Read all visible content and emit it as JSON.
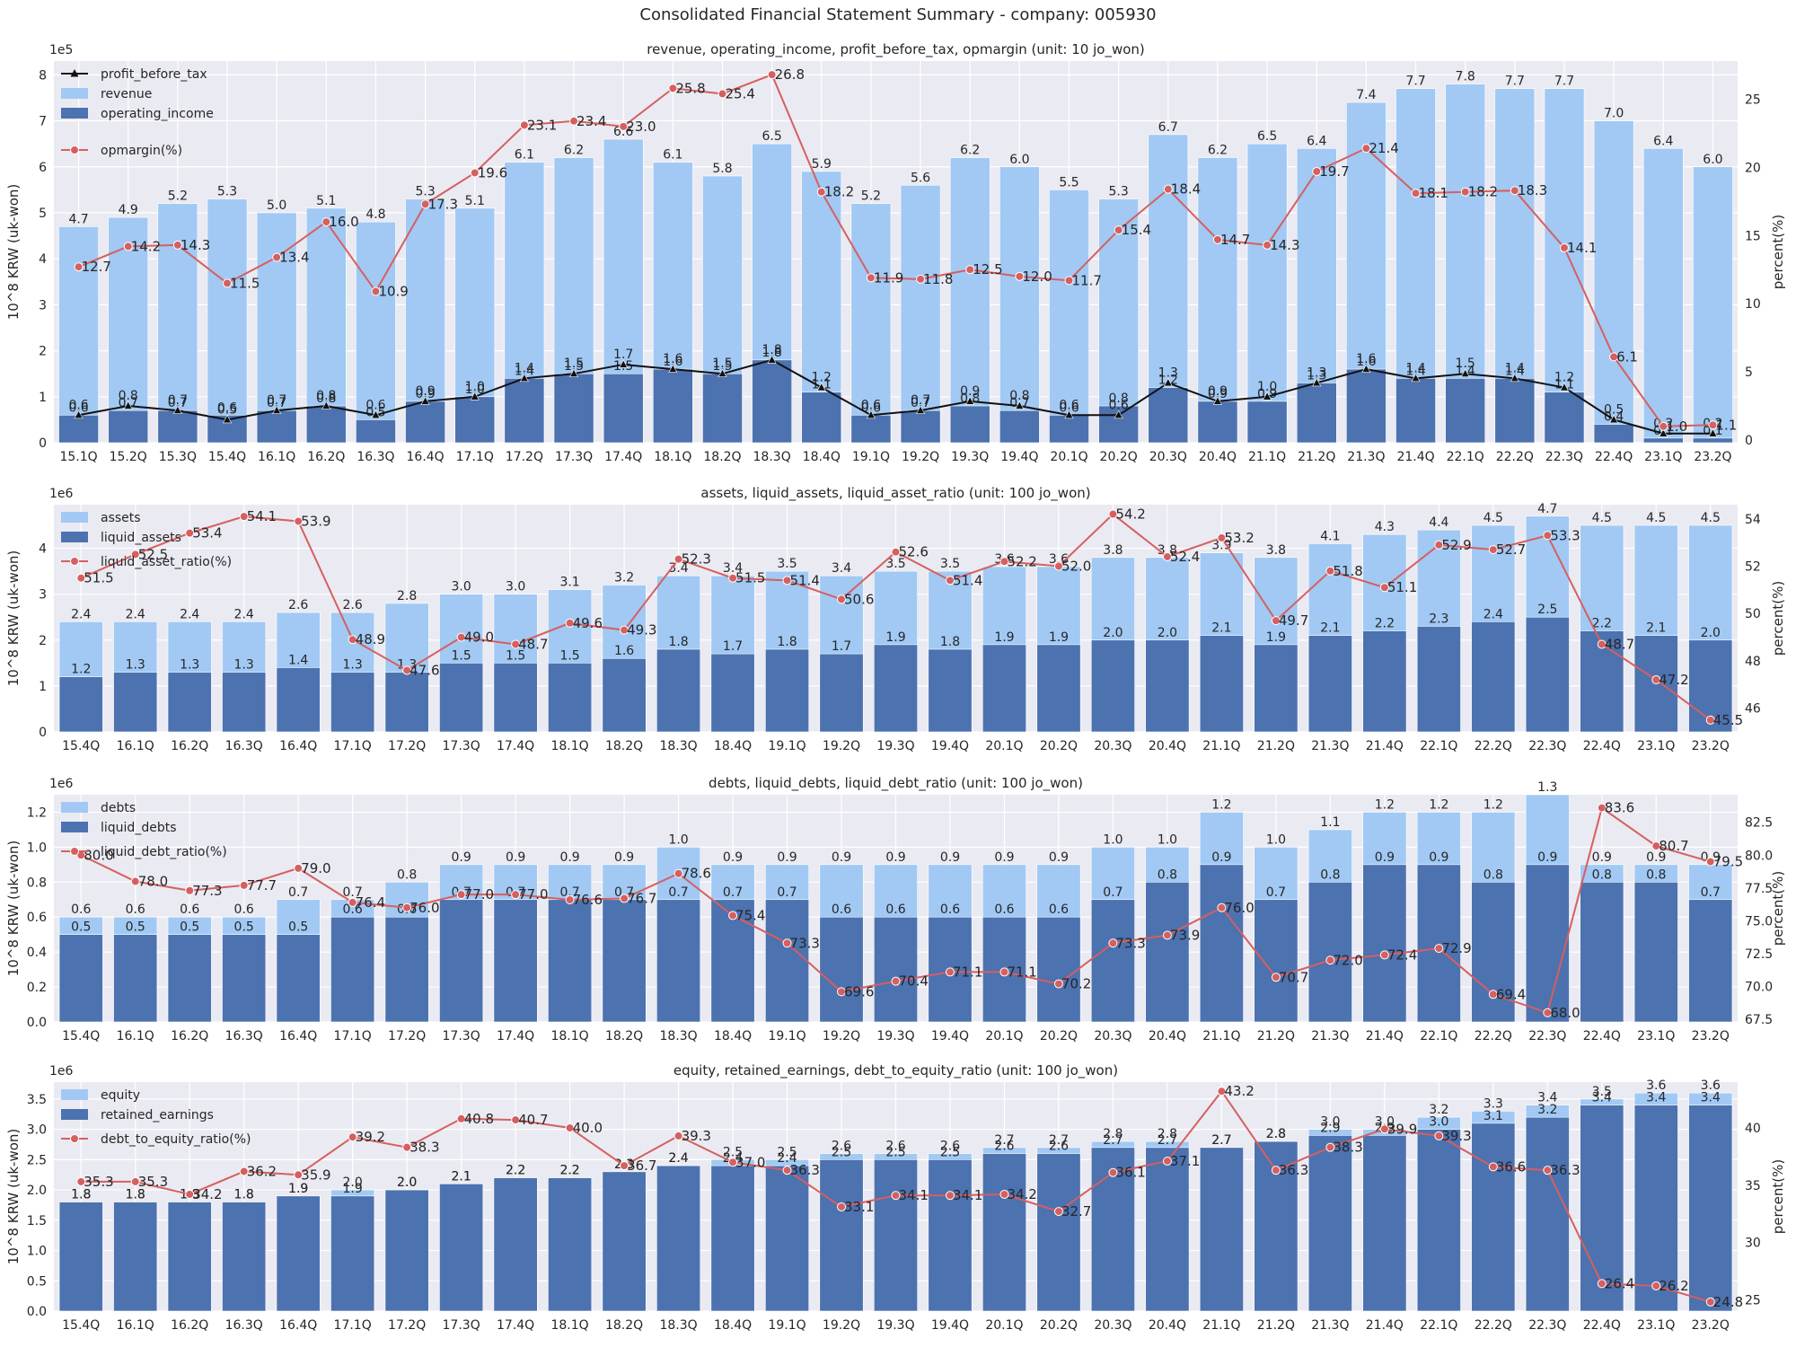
{
  "figure": {
    "title": "Consolidated Financial Statement Summary - company: 005930"
  },
  "colors": {
    "bg": "#eaeaf2",
    "grid": "#ffffff",
    "light_bar": "#a1c9f4",
    "dark_bar": "#4c72b0",
    "line_red": "#d65f5f",
    "line_black": "#111111",
    "text": "#262626"
  },
  "chart_data": [
    {
      "type": "bar",
      "title": "revenue, operating_income, profit_before_tax, opmargin (unit: 10 jo_won)",
      "ylabel": "10^8 KRW (uk-won)",
      "y2label": "percent(%)",
      "yscale_label": "1e5",
      "ylim": [
        0,
        8.3
      ],
      "yticks": [
        "0",
        "1",
        "2",
        "3",
        "4",
        "5",
        "6",
        "7",
        "8"
      ],
      "y2lim": [
        -0.2,
        27.8
      ],
      "y2ticks": [
        "0",
        "5",
        "10",
        "15",
        "20",
        "25"
      ],
      "legend_position": "top-left",
      "categories": [
        "15.1Q",
        "15.2Q",
        "15.3Q",
        "15.4Q",
        "16.1Q",
        "16.2Q",
        "16.3Q",
        "16.4Q",
        "17.1Q",
        "17.2Q",
        "17.3Q",
        "17.4Q",
        "18.1Q",
        "18.2Q",
        "18.3Q",
        "18.4Q",
        "19.1Q",
        "19.2Q",
        "19.3Q",
        "19.4Q",
        "20.1Q",
        "20.2Q",
        "20.3Q",
        "20.4Q",
        "21.1Q",
        "21.2Q",
        "21.3Q",
        "21.4Q",
        "22.1Q",
        "22.2Q",
        "22.3Q",
        "22.4Q",
        "23.1Q",
        "23.2Q"
      ],
      "legend": [
        "profit_before_tax",
        "revenue",
        "operating_income",
        "opmargin(%)"
      ],
      "bars_back": {
        "name": "revenue",
        "values": [
          4.7,
          4.9,
          5.2,
          5.3,
          5.0,
          5.1,
          4.8,
          5.3,
          5.1,
          6.1,
          6.2,
          6.6,
          6.1,
          5.8,
          6.5,
          5.9,
          5.2,
          5.6,
          6.2,
          6.0,
          5.5,
          5.3,
          6.7,
          6.2,
          6.5,
          6.4,
          7.4,
          7.7,
          7.8,
          7.7,
          7.7,
          7.0,
          6.4,
          6.0
        ]
      },
      "bars_front": {
        "name": "operating_income",
        "values": [
          0.6,
          0.7,
          0.7,
          0.6,
          0.7,
          0.8,
          0.5,
          0.9,
          1.0,
          1.4,
          1.5,
          1.5,
          1.6,
          1.5,
          1.8,
          1.1,
          0.6,
          0.7,
          0.8,
          0.7,
          0.6,
          0.8,
          1.2,
          0.9,
          0.9,
          1.3,
          1.6,
          1.4,
          1.4,
          1.4,
          1.1,
          0.4,
          0.1,
          0.1
        ]
      },
      "line_black": {
        "name": "profit_before_tax",
        "values": [
          0.6,
          0.8,
          0.7,
          0.5,
          0.7,
          0.8,
          0.6,
          0.9,
          1.0,
          1.4,
          1.5,
          1.7,
          1.6,
          1.5,
          1.8,
          1.2,
          0.6,
          0.7,
          0.9,
          0.8,
          0.6,
          0.6,
          1.3,
          0.9,
          1.0,
          1.3,
          1.6,
          1.4,
          1.5,
          1.4,
          1.2,
          0.5,
          0.2,
          0.2
        ]
      },
      "line_red": {
        "name": "opmargin(%)",
        "values": [
          12.7,
          14.2,
          14.3,
          11.5,
          13.4,
          16.0,
          10.9,
          17.3,
          19.6,
          23.1,
          23.4,
          23.0,
          25.8,
          25.4,
          26.8,
          18.2,
          11.9,
          11.8,
          12.5,
          12.0,
          11.7,
          15.4,
          18.4,
          14.7,
          14.3,
          19.7,
          21.4,
          18.1,
          18.2,
          18.3,
          14.1,
          6.1,
          1.0,
          1.1
        ]
      }
    },
    {
      "type": "bar",
      "title": "assets, liquid_assets, liquid_asset_ratio (unit: 100 jo_won)",
      "ylabel": "10^8 KRW (uk-won)",
      "y2label": "percent(%)",
      "yscale_label": "1e6",
      "ylim": [
        0,
        4.95
      ],
      "yticks": [
        "0",
        "1",
        "2",
        "3",
        "4"
      ],
      "y2lim": [
        45.0,
        54.6
      ],
      "y2ticks": [
        "46",
        "48",
        "50",
        "52",
        "54"
      ],
      "legend_position": "top-left",
      "categories": [
        "15.4Q",
        "16.1Q",
        "16.2Q",
        "16.3Q",
        "16.4Q",
        "17.1Q",
        "17.2Q",
        "17.3Q",
        "17.4Q",
        "18.1Q",
        "18.2Q",
        "18.3Q",
        "18.4Q",
        "19.1Q",
        "19.2Q",
        "19.3Q",
        "19.4Q",
        "20.1Q",
        "20.2Q",
        "20.3Q",
        "20.4Q",
        "21.1Q",
        "21.2Q",
        "21.3Q",
        "21.4Q",
        "22.1Q",
        "22.2Q",
        "22.3Q",
        "22.4Q",
        "23.1Q",
        "23.2Q"
      ],
      "legend": [
        "assets",
        "liquid_assets",
        "liquid_asset_ratio(%)"
      ],
      "bars_back": {
        "name": "assets",
        "values": [
          2.4,
          2.4,
          2.4,
          2.4,
          2.6,
          2.6,
          2.8,
          3.0,
          3.0,
          3.1,
          3.2,
          3.4,
          3.4,
          3.5,
          3.4,
          3.5,
          3.5,
          3.6,
          3.6,
          3.8,
          3.8,
          3.9,
          3.8,
          4.1,
          4.3,
          4.4,
          4.5,
          4.7,
          4.5,
          4.5,
          4.5
        ]
      },
      "bars_front": {
        "name": "liquid_assets",
        "values": [
          1.2,
          1.3,
          1.3,
          1.3,
          1.4,
          1.3,
          1.3,
          1.5,
          1.5,
          1.5,
          1.6,
          1.8,
          1.7,
          1.8,
          1.7,
          1.9,
          1.8,
          1.9,
          1.9,
          2.0,
          2.0,
          2.1,
          1.9,
          2.1,
          2.2,
          2.3,
          2.4,
          2.5,
          2.2,
          2.1,
          2.0
        ]
      },
      "line_red": {
        "name": "liquid_asset_ratio(%)",
        "values": [
          51.5,
          52.5,
          53.4,
          54.1,
          53.9,
          48.9,
          47.6,
          49.0,
          48.7,
          49.6,
          49.3,
          52.3,
          51.5,
          51.4,
          50.6,
          52.6,
          51.4,
          52.2,
          52.0,
          54.2,
          52.4,
          53.2,
          49.7,
          51.8,
          51.1,
          52.9,
          52.7,
          53.3,
          48.7,
          47.2,
          45.5
        ]
      }
    },
    {
      "type": "bar",
      "title": "debts, liquid_debts, liquid_debt_ratio (unit: 100 jo_won)",
      "ylabel": "10^8 KRW (uk-won)",
      "y2label": "percent(%)",
      "yscale_label": "1e6",
      "ylim": [
        0,
        1.3
      ],
      "yticks": [
        "0.0",
        "0.2",
        "0.4",
        "0.6",
        "0.8",
        "1.0",
        "1.2"
      ],
      "y2lim": [
        67.3,
        84.6
      ],
      "y2ticks": [
        "67.5",
        "70.0",
        "72.5",
        "75.0",
        "77.5",
        "80.0",
        "82.5"
      ],
      "legend_position": "top-left",
      "categories": [
        "15.4Q",
        "16.1Q",
        "16.2Q",
        "16.3Q",
        "16.4Q",
        "17.1Q",
        "17.2Q",
        "17.3Q",
        "17.4Q",
        "18.1Q",
        "18.2Q",
        "18.3Q",
        "18.4Q",
        "19.1Q",
        "19.2Q",
        "19.3Q",
        "19.4Q",
        "20.1Q",
        "20.2Q",
        "20.3Q",
        "20.4Q",
        "21.1Q",
        "21.2Q",
        "21.3Q",
        "21.4Q",
        "22.1Q",
        "22.2Q",
        "22.3Q",
        "22.4Q",
        "23.1Q",
        "23.2Q"
      ],
      "legend": [
        "debts",
        "liquid_debts",
        "liquid_debt_ratio(%)"
      ],
      "bars_back": {
        "name": "debts",
        "values": [
          0.6,
          0.6,
          0.6,
          0.6,
          0.7,
          0.7,
          0.8,
          0.9,
          0.9,
          0.9,
          0.9,
          1.0,
          0.9,
          0.9,
          0.9,
          0.9,
          0.9,
          0.9,
          0.9,
          1.0,
          1.0,
          1.2,
          1.0,
          1.1,
          1.2,
          1.2,
          1.2,
          1.3,
          0.9,
          0.9,
          0.9
        ]
      },
      "bars_front": {
        "name": "liquid_debts",
        "values": [
          0.5,
          0.5,
          0.5,
          0.5,
          0.5,
          0.6,
          0.6,
          0.7,
          0.7,
          0.7,
          0.7,
          0.7,
          0.7,
          0.7,
          0.6,
          0.6,
          0.6,
          0.6,
          0.6,
          0.7,
          0.8,
          0.9,
          0.7,
          0.8,
          0.9,
          0.9,
          0.8,
          0.9,
          0.8,
          0.8,
          0.7
        ]
      },
      "line_red": {
        "name": "liquid_debt_ratio(%)",
        "values": [
          80.0,
          78.0,
          77.3,
          77.7,
          79.0,
          76.4,
          76.0,
          77.0,
          77.0,
          76.6,
          76.7,
          78.6,
          75.4,
          73.3,
          69.6,
          70.4,
          71.1,
          71.1,
          70.2,
          73.3,
          73.9,
          76.0,
          70.7,
          72.0,
          72.4,
          72.9,
          69.4,
          68.0,
          83.6,
          80.7,
          79.5
        ]
      }
    },
    {
      "type": "bar",
      "title": "equity, retained_earnings, debt_to_equity_ratio (unit: 100 jo_won)",
      "ylabel": "10^8 KRW (uk-won)",
      "y2label": "percent(%)",
      "yscale_label": "1e6",
      "ylim": [
        0,
        3.78
      ],
      "yticks": [
        "0.0",
        "0.5",
        "1.0",
        "1.5",
        "2.0",
        "2.5",
        "3.0",
        "3.5"
      ],
      "y2lim": [
        24.0,
        44.0
      ],
      "y2ticks": [
        "25",
        "30",
        "35",
        "40"
      ],
      "legend_position": "top-left",
      "categories": [
        "15.4Q",
        "16.1Q",
        "16.2Q",
        "16.3Q",
        "16.4Q",
        "17.1Q",
        "17.2Q",
        "17.3Q",
        "17.4Q",
        "18.1Q",
        "18.2Q",
        "18.3Q",
        "18.4Q",
        "19.1Q",
        "19.2Q",
        "19.3Q",
        "19.4Q",
        "20.1Q",
        "20.2Q",
        "20.3Q",
        "20.4Q",
        "21.1Q",
        "21.2Q",
        "21.3Q",
        "21.4Q",
        "22.1Q",
        "22.2Q",
        "22.3Q",
        "22.4Q",
        "23.1Q",
        "23.2Q"
      ],
      "legend": [
        "equity",
        "retained_earnings",
        "debt_to_equity_ratio(%)"
      ],
      "bars_back": {
        "name": "equity",
        "values": [
          1.8,
          1.8,
          1.8,
          1.8,
          1.9,
          2.0,
          2.0,
          2.1,
          2.2,
          2.2,
          2.3,
          2.4,
          2.5,
          2.5,
          2.6,
          2.6,
          2.6,
          2.7,
          2.7,
          2.8,
          2.8,
          2.7,
          2.8,
          3.0,
          3.0,
          3.2,
          3.3,
          3.4,
          3.5,
          3.6,
          3.6
        ]
      },
      "bars_front": {
        "name": "retained_earnings",
        "values": [
          1.8,
          1.8,
          1.8,
          1.8,
          1.9,
          1.9,
          2.0,
          2.1,
          2.2,
          2.2,
          2.3,
          2.4,
          2.4,
          2.4,
          2.5,
          2.5,
          2.5,
          2.6,
          2.6,
          2.7,
          2.7,
          2.7,
          2.8,
          2.9,
          2.9,
          3.0,
          3.1,
          3.2,
          3.4,
          3.4,
          3.4
        ]
      },
      "line_red": {
        "name": "debt_to_equity_ratio(%)",
        "values": [
          35.3,
          35.3,
          34.2,
          36.2,
          35.9,
          39.2,
          38.3,
          40.8,
          40.7,
          40.0,
          36.7,
          39.3,
          37.0,
          36.3,
          33.1,
          34.1,
          34.1,
          34.2,
          32.7,
          36.1,
          37.1,
          43.2,
          36.3,
          38.3,
          39.9,
          39.3,
          36.6,
          36.3,
          26.4,
          26.2,
          24.8
        ]
      }
    }
  ]
}
